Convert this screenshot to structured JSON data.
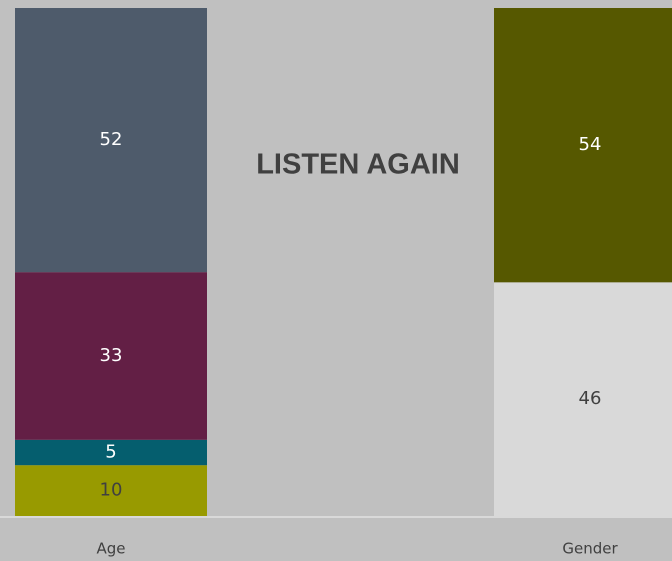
{
  "chart_data": {
    "type": "stacked_bar",
    "categories": [
      "Age",
      "Gender"
    ],
    "annotation": "LISTEN AGAIN",
    "ylim": [
      0,
      100
    ],
    "series": [
      {
        "color": "#989a00",
        "label_color": "#404040",
        "values": [
          10,
          null
        ]
      },
      {
        "color": "#055e6e",
        "label_color": "#ffffff",
        "values": [
          5,
          null
        ]
      },
      {
        "color": "#631f45",
        "label_color": "#ffffff",
        "values": [
          33,
          null
        ]
      },
      {
        "color": "#4e5b6b",
        "label_color": "#ffffff",
        "values": [
          52,
          null
        ]
      },
      {
        "color": "#d9d9d9",
        "label_color": "#404040",
        "values": [
          null,
          46
        ]
      },
      {
        "color": "#565800",
        "label_color": "#ffffff",
        "values": [
          null,
          54
        ]
      }
    ]
  }
}
